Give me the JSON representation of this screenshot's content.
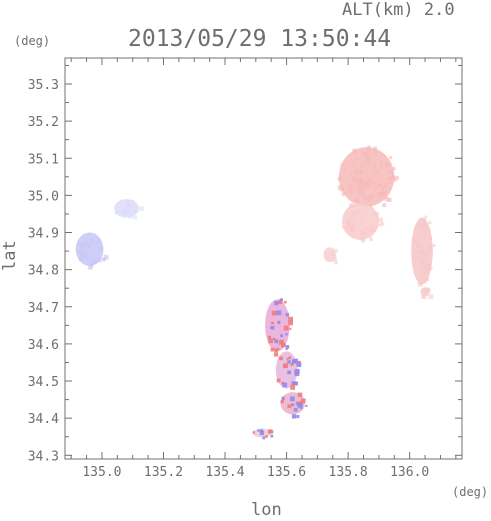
{
  "header": {
    "altitude_label": "ALT(km) 2.0",
    "timestamp": "2013/05/29 13:50:44",
    "y_unit": "(deg)",
    "x_unit": "(deg)"
  },
  "chart_data": {
    "type": "scatter",
    "title": "",
    "xlabel": "lon",
    "ylabel": "lat",
    "xlim": [
      134.88,
      136.17
    ],
    "ylim": [
      34.29,
      35.37
    ],
    "x_ticks": [
      135.0,
      135.2,
      135.4,
      135.6,
      135.8,
      136.0
    ],
    "x_tick_labels": [
      "135.0",
      "135.2",
      "135.4",
      "135.6",
      "135.8",
      "136.0"
    ],
    "y_ticks": [
      34.3,
      34.4,
      34.5,
      34.6,
      34.7,
      34.8,
      34.9,
      35.0,
      35.1,
      35.2,
      35.3
    ],
    "y_tick_labels": [
      "34.3",
      "34.4",
      "34.5",
      "34.6",
      "34.7",
      "34.8",
      "34.9",
      "35.0",
      "35.1",
      "35.2",
      "35.3"
    ],
    "grid": false,
    "colors": {
      "approaching": "#8c8cf0",
      "receding": "#f07c7c",
      "faint_receding": "#f6c2c2",
      "faint_approaching": "#c8c8f8"
    },
    "clusters": [
      {
        "label": "west-approaching-1",
        "lon": 134.96,
        "lat": 34.855,
        "rx": 0.045,
        "ry": 0.045,
        "color": "#c6c6f6"
      },
      {
        "label": "west-approaching-2",
        "lon": 135.08,
        "lat": 34.965,
        "rx": 0.04,
        "ry": 0.025,
        "color": "#dcdcfa"
      },
      {
        "label": "north-receding-core",
        "lon": 135.86,
        "lat": 35.05,
        "rx": 0.09,
        "ry": 0.08,
        "color": "#f7b8b8"
      },
      {
        "label": "north-receding-tail",
        "lon": 135.84,
        "lat": 34.93,
        "rx": 0.06,
        "ry": 0.05,
        "color": "#f8caca"
      },
      {
        "label": "east-receding",
        "lon": 136.04,
        "lat": 34.85,
        "rx": 0.035,
        "ry": 0.09,
        "color": "#f6c6c6"
      },
      {
        "label": "east-small",
        "lon": 136.05,
        "lat": 34.74,
        "rx": 0.015,
        "ry": 0.012,
        "color": "#f5cccc"
      },
      {
        "label": "mid-receding",
        "lon": 135.74,
        "lat": 34.84,
        "rx": 0.02,
        "ry": 0.02,
        "color": "#f7d0d0"
      },
      {
        "label": "south-mixed-1",
        "lon": 135.57,
        "lat": 34.65,
        "rx": 0.04,
        "ry": 0.07,
        "color": "#e9a9d6"
      },
      {
        "label": "south-mixed-2",
        "lon": 135.6,
        "lat": 34.53,
        "rx": 0.035,
        "ry": 0.05,
        "color": "#e8b6dc"
      },
      {
        "label": "south-mixed-3",
        "lon": 135.62,
        "lat": 34.44,
        "rx": 0.04,
        "ry": 0.03,
        "color": "#eab0cc"
      },
      {
        "label": "south-tip",
        "lon": 135.52,
        "lat": 34.36,
        "rx": 0.03,
        "ry": 0.012,
        "color": "#f0c8d8"
      }
    ]
  }
}
